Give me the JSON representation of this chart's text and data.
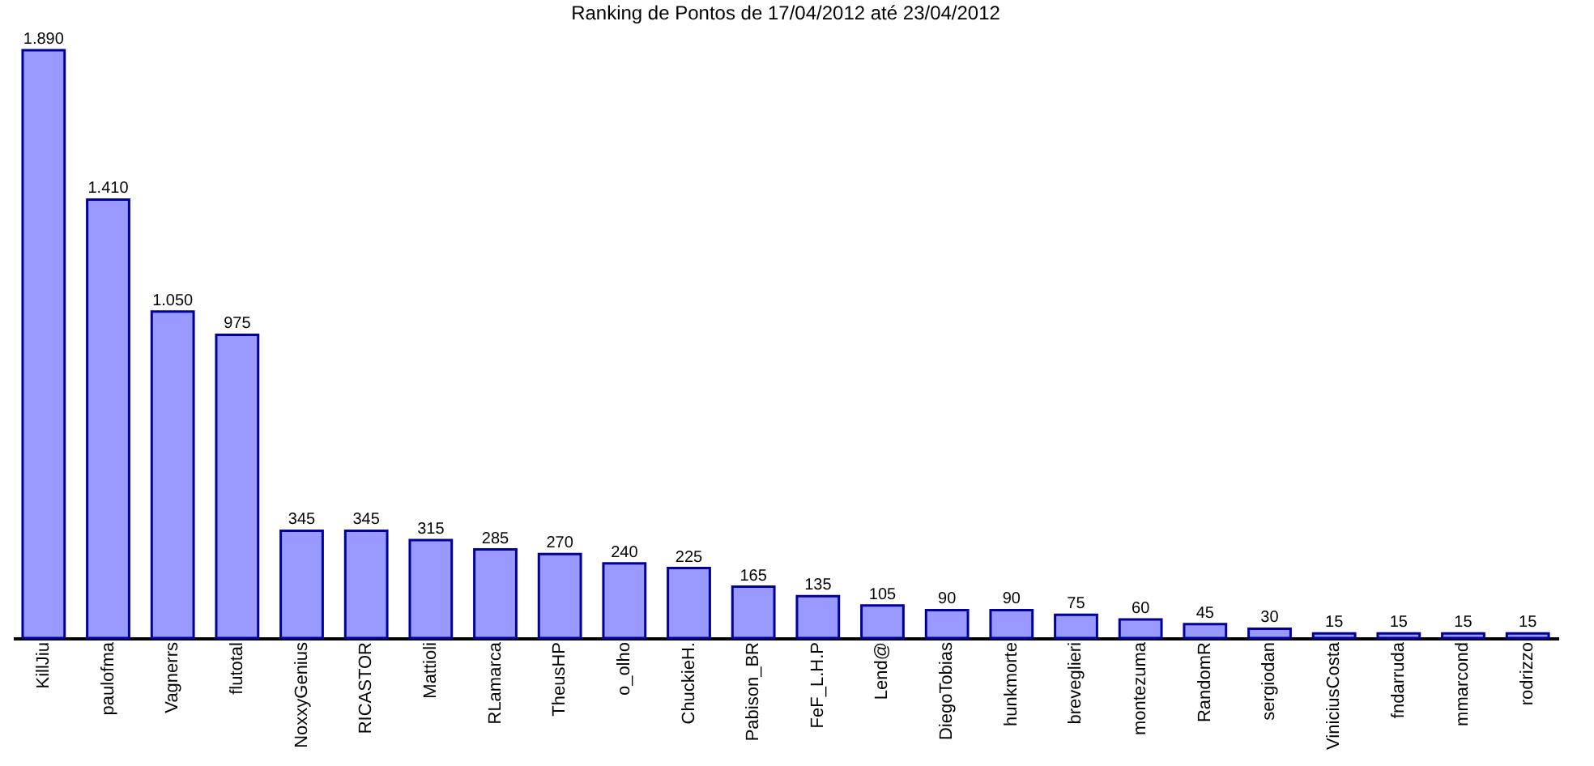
{
  "chart_data": {
    "type": "bar",
    "title": "Ranking de Pontos de 17/04/2012 até 23/04/2012",
    "categories": [
      "KillJiu",
      "paulofma",
      "Vagnerrs",
      "flutotal",
      "NoxxyGenius",
      "RICASTOR",
      "Mattioli",
      "RLamarca",
      "TheusHP",
      "o_olho",
      "ChuckieH.",
      "Pabison_BR",
      "FeF_L.H.P",
      "Lend@",
      "DiegoTobias",
      "hunkmorte",
      "breveglieri",
      "montezuma",
      "RandomR",
      "sergiodan",
      "ViniciusCosta",
      "fndarruda",
      "mmarcond",
      "rodrizzo"
    ],
    "values": [
      1890,
      1410,
      1050,
      975,
      345,
      345,
      315,
      285,
      270,
      240,
      225,
      165,
      135,
      105,
      90,
      90,
      75,
      60,
      45,
      30,
      15,
      15,
      15,
      15
    ],
    "value_labels": [
      "1.890",
      "1.410",
      "1.050",
      "975",
      "345",
      "345",
      "315",
      "285",
      "270",
      "240",
      "225",
      "165",
      "135",
      "105",
      "90",
      "90",
      "75",
      "60",
      "45",
      "30",
      "15",
      "15",
      "15",
      "15"
    ],
    "color": "#9999ff",
    "grid": false
  }
}
